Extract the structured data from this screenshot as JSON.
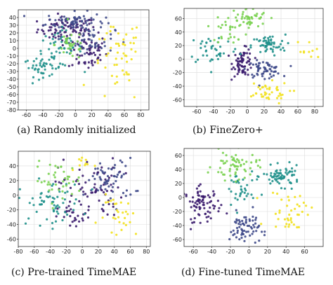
{
  "figure": {
    "panel_count": 4
  },
  "chart_data": [
    {
      "type": "scatter",
      "caption": "(a) Randomly initialized",
      "xlim": [
        -70,
        90
      ],
      "ylim": [
        -80,
        50
      ],
      "xticks": [
        -60,
        -40,
        -20,
        0,
        20,
        40,
        60,
        80
      ],
      "yticks": [
        40,
        30,
        20,
        10,
        0,
        -10,
        -20,
        -30,
        -40,
        -50,
        -60,
        -70,
        -80
      ],
      "grid": true,
      "clusters": [
        {
          "class": 0,
          "color": "#3b1c6e",
          "cx": -10,
          "cy": 25,
          "sx": 18,
          "sy": 8,
          "n": 90
        },
        {
          "class": 0,
          "color": "#3b1c6e",
          "cx": 15,
          "cy": -5,
          "sx": 12,
          "sy": 12,
          "n": 60
        },
        {
          "class": 1,
          "color": "#3f4a8a",
          "cx": 0,
          "cy": 35,
          "sx": 18,
          "sy": 6,
          "n": 70
        },
        {
          "class": 1,
          "color": "#3f4a8a",
          "cx": 20,
          "cy": 10,
          "sx": 14,
          "sy": 8,
          "n": 40
        },
        {
          "class": 2,
          "color": "#21918c",
          "cx": -40,
          "cy": -25,
          "sx": 12,
          "sy": 6,
          "n": 40
        },
        {
          "class": 2,
          "color": "#21918c",
          "cx": -20,
          "cy": 0,
          "sx": 14,
          "sy": 12,
          "n": 50
        },
        {
          "class": 3,
          "color": "#7ad151",
          "cx": -5,
          "cy": 5,
          "sx": 10,
          "sy": 10,
          "n": 30
        },
        {
          "class": 4,
          "color": "#f2e11e",
          "cx": 50,
          "cy": -25,
          "sx": 15,
          "sy": 25,
          "n": 40
        },
        {
          "class": 4,
          "color": "#f2e11e",
          "cx": 60,
          "cy": 10,
          "sx": 10,
          "sy": 12,
          "n": 12
        }
      ]
    },
    {
      "type": "scatter",
      "caption": "(b) FineZero+",
      "xlim": [
        -75,
        90
      ],
      "ylim": [
        -70,
        75
      ],
      "xticks": [
        -60,
        -40,
        -20,
        0,
        20,
        40,
        60,
        80
      ],
      "yticks": [
        60,
        40,
        20,
        0,
        -20,
        -40,
        -60
      ],
      "grid": true,
      "clusters": [
        {
          "class": 0,
          "color": "#3b1c6e",
          "cx": -5,
          "cy": -5,
          "sx": 6,
          "sy": 10,
          "n": 70
        },
        {
          "class": 1,
          "color": "#3f4a8a",
          "cx": 20,
          "cy": -15,
          "sx": 10,
          "sy": 6,
          "n": 60
        },
        {
          "class": 2,
          "color": "#21918c",
          "cx": 25,
          "cy": 20,
          "sx": 10,
          "sy": 8,
          "n": 60
        },
        {
          "class": 2,
          "color": "#21918c",
          "cx": -40,
          "cy": 15,
          "sx": 15,
          "sy": 12,
          "n": 40
        },
        {
          "class": 3,
          "color": "#7ad151",
          "cx": 0,
          "cy": 60,
          "sx": 12,
          "sy": 8,
          "n": 50
        },
        {
          "class": 3,
          "color": "#7ad151",
          "cx": -20,
          "cy": 40,
          "sx": 10,
          "sy": 8,
          "n": 20
        },
        {
          "class": 4,
          "color": "#f2e11e",
          "cx": 20,
          "cy": -50,
          "sx": 15,
          "sy": 8,
          "n": 40
        },
        {
          "class": 4,
          "color": "#f2e11e",
          "cx": 70,
          "cy": 10,
          "sx": 8,
          "sy": 10,
          "n": 10
        }
      ]
    },
    {
      "type": "scatter",
      "caption": "(c) Pre-trained TimeMAE",
      "xlim": [
        -80,
        85
      ],
      "ylim": [
        -70,
        60
      ],
      "xticks": [
        -80,
        -60,
        -40,
        -20,
        0,
        20,
        40,
        60,
        80
      ],
      "yticks": [
        40,
        20,
        0,
        -20,
        -40,
        -60
      ],
      "grid": true,
      "clusters": [
        {
          "class": 0,
          "color": "#3b1c6e",
          "cx": 10,
          "cy": 10,
          "sx": 20,
          "sy": 20,
          "n": 70
        },
        {
          "class": 0,
          "color": "#3b1c6e",
          "cx": -10,
          "cy": -30,
          "sx": 10,
          "sy": 8,
          "n": 25
        },
        {
          "class": 1,
          "color": "#3f4a8a",
          "cx": 35,
          "cy": 20,
          "sx": 15,
          "sy": 15,
          "n": 60
        },
        {
          "class": 2,
          "color": "#21918c",
          "cx": -40,
          "cy": -10,
          "sx": 20,
          "sy": 15,
          "n": 60
        },
        {
          "class": 3,
          "color": "#7ad151",
          "cx": -30,
          "cy": 20,
          "sx": 15,
          "sy": 12,
          "n": 40
        },
        {
          "class": 4,
          "color": "#f2e11e",
          "cx": 50,
          "cy": -30,
          "sx": 15,
          "sy": 15,
          "n": 30
        },
        {
          "class": 4,
          "color": "#f2e11e",
          "cx": 5,
          "cy": 45,
          "sx": 6,
          "sy": 6,
          "n": 10
        }
      ]
    },
    {
      "type": "scatter",
      "caption": "(d) Fine-tuned TimeMAE",
      "xlim": [
        -70,
        80
      ],
      "ylim": [
        -70,
        70
      ],
      "xticks": [
        -60,
        -40,
        -20,
        0,
        20,
        40,
        60
      ],
      "yticks": [
        60,
        40,
        20,
        0,
        -20,
        -40,
        -60
      ],
      "grid": true,
      "clusters": [
        {
          "class": 0,
          "color": "#3b1c6e",
          "cx": -50,
          "cy": -10,
          "sx": 10,
          "sy": 12,
          "n": 80
        },
        {
          "class": 1,
          "color": "#3f4a8a",
          "cx": -5,
          "cy": -45,
          "sx": 8,
          "sy": 12,
          "n": 70
        },
        {
          "class": 2,
          "color": "#21918c",
          "cx": 35,
          "cy": 30,
          "sx": 10,
          "sy": 7,
          "n": 70
        },
        {
          "class": 2,
          "color": "#21918c",
          "cx": -10,
          "cy": 10,
          "sx": 8,
          "sy": 15,
          "n": 35
        },
        {
          "class": 3,
          "color": "#7ad151",
          "cx": -15,
          "cy": 45,
          "sx": 12,
          "sy": 10,
          "n": 60
        },
        {
          "class": 4,
          "color": "#f2e11e",
          "cx": 45,
          "cy": -20,
          "sx": 12,
          "sy": 15,
          "n": 40
        }
      ]
    }
  ]
}
